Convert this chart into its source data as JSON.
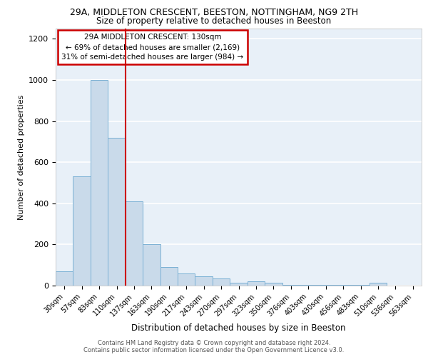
{
  "title1": "29A, MIDDLETON CRESCENT, BEESTON, NOTTINGHAM, NG9 2TH",
  "title2": "Size of property relative to detached houses in Beeston",
  "xlabel": "Distribution of detached houses by size in Beeston",
  "ylabel": "Number of detached properties",
  "categories": [
    "30sqm",
    "57sqm",
    "83sqm",
    "110sqm",
    "137sqm",
    "163sqm",
    "190sqm",
    "217sqm",
    "243sqm",
    "270sqm",
    "297sqm",
    "323sqm",
    "350sqm",
    "376sqm",
    "403sqm",
    "430sqm",
    "456sqm",
    "483sqm",
    "510sqm",
    "536sqm",
    "563sqm"
  ],
  "values": [
    70,
    530,
    1000,
    720,
    410,
    200,
    90,
    60,
    45,
    35,
    15,
    20,
    15,
    3,
    3,
    3,
    3,
    3,
    15,
    0,
    0
  ],
  "bar_color": "#c9daea",
  "bar_edge_color": "#7ab0d4",
  "background_color": "#e8f0f8",
  "grid_color": "#ffffff",
  "red_line_index": 4,
  "annotation_text": "29A MIDDLETON CRESCENT: 130sqm\n← 69% of detached houses are smaller (2,169)\n31% of semi-detached houses are larger (984) →",
  "annotation_box_color": "#ffffff",
  "annotation_box_edge": "#cc0000",
  "fig_background": "#ffffff",
  "footer_text": "Contains HM Land Registry data © Crown copyright and database right 2024.\nContains public sector information licensed under the Open Government Licence v3.0.",
  "ylim": [
    0,
    1250
  ],
  "yticks": [
    0,
    200,
    400,
    600,
    800,
    1000,
    1200
  ]
}
